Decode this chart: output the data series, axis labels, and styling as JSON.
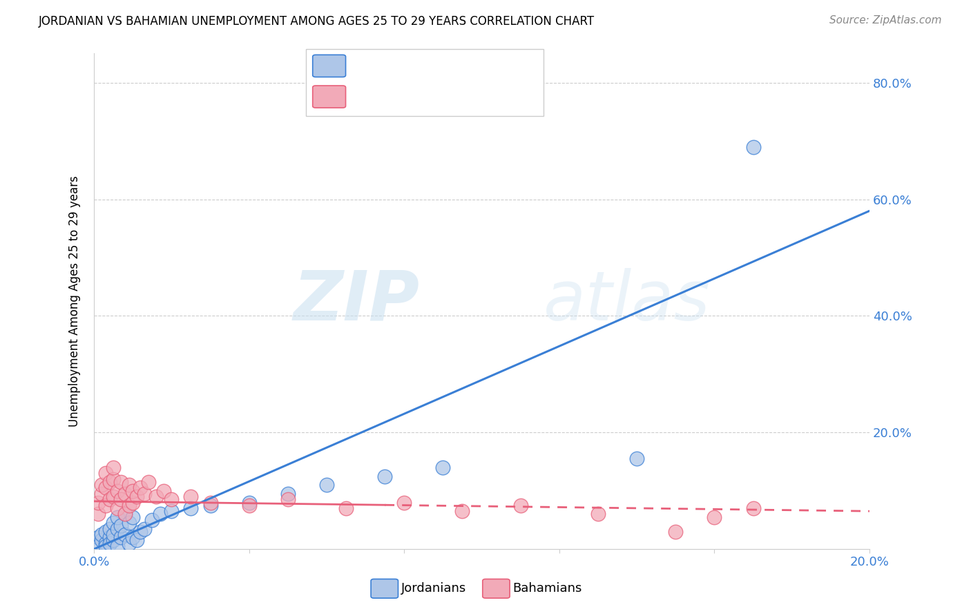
{
  "title": "JORDANIAN VS BAHAMIAN UNEMPLOYMENT AMONG AGES 25 TO 29 YEARS CORRELATION CHART",
  "source": "Source: ZipAtlas.com",
  "ylabel": "Unemployment Among Ages 25 to 29 years",
  "xlim": [
    0.0,
    0.2
  ],
  "ylim": [
    0.0,
    0.85
  ],
  "xticks": [
    0.0,
    0.04,
    0.08,
    0.12,
    0.16,
    0.2
  ],
  "yticks": [
    0.0,
    0.2,
    0.4,
    0.6,
    0.8
  ],
  "right_ytick_labels": [
    "",
    "20.0%",
    "40.0%",
    "60.0%",
    "80.0%"
  ],
  "xtick_labels": [
    "0.0%",
    "",
    "",
    "",
    "",
    "20.0%"
  ],
  "jordanian_color": "#aec6e8",
  "bahamian_color": "#f2aab8",
  "jordan_line_color": "#3a7fd5",
  "bahamas_line_color": "#e8607a",
  "watermark_zip": "ZIP",
  "watermark_atlas": "atlas",
  "legend_labels": [
    "Jordanians",
    "Bahamians"
  ],
  "jordanian_x": [
    0.001,
    0.001,
    0.002,
    0.002,
    0.003,
    0.003,
    0.003,
    0.004,
    0.004,
    0.004,
    0.005,
    0.005,
    0.005,
    0.006,
    0.006,
    0.006,
    0.007,
    0.007,
    0.008,
    0.008,
    0.009,
    0.009,
    0.01,
    0.01,
    0.011,
    0.012,
    0.013,
    0.015,
    0.017,
    0.02,
    0.025,
    0.03,
    0.04,
    0.05,
    0.06,
    0.075,
    0.09,
    0.14,
    0.17
  ],
  "jordanian_y": [
    0.02,
    0.005,
    0.015,
    0.025,
    0.01,
    0.03,
    0.005,
    0.02,
    0.01,
    0.035,
    0.015,
    0.025,
    0.045,
    0.005,
    0.035,
    0.055,
    0.02,
    0.04,
    0.025,
    0.06,
    0.01,
    0.045,
    0.02,
    0.055,
    0.015,
    0.03,
    0.035,
    0.05,
    0.06,
    0.065,
    0.07,
    0.075,
    0.08,
    0.095,
    0.11,
    0.125,
    0.14,
    0.155,
    0.69
  ],
  "bahamian_x": [
    0.001,
    0.001,
    0.002,
    0.002,
    0.003,
    0.003,
    0.003,
    0.004,
    0.004,
    0.005,
    0.005,
    0.005,
    0.006,
    0.006,
    0.007,
    0.007,
    0.008,
    0.008,
    0.009,
    0.009,
    0.01,
    0.01,
    0.011,
    0.012,
    0.013,
    0.014,
    0.016,
    0.018,
    0.02,
    0.025,
    0.03,
    0.04,
    0.05,
    0.065,
    0.08,
    0.095,
    0.11,
    0.13,
    0.15,
    0.16,
    0.17
  ],
  "bahamian_y": [
    0.06,
    0.08,
    0.095,
    0.11,
    0.075,
    0.105,
    0.13,
    0.085,
    0.115,
    0.09,
    0.12,
    0.14,
    0.07,
    0.1,
    0.085,
    0.115,
    0.06,
    0.095,
    0.075,
    0.11,
    0.08,
    0.1,
    0.09,
    0.105,
    0.095,
    0.115,
    0.09,
    0.1,
    0.085,
    0.09,
    0.08,
    0.075,
    0.085,
    0.07,
    0.08,
    0.065,
    0.075,
    0.06,
    0.03,
    0.055,
    0.07
  ],
  "jordan_trendline": [
    0.0,
    0.2,
    0.0,
    0.58
  ],
  "bahamas_trendline": [
    0.0,
    0.2,
    0.082,
    0.065
  ]
}
